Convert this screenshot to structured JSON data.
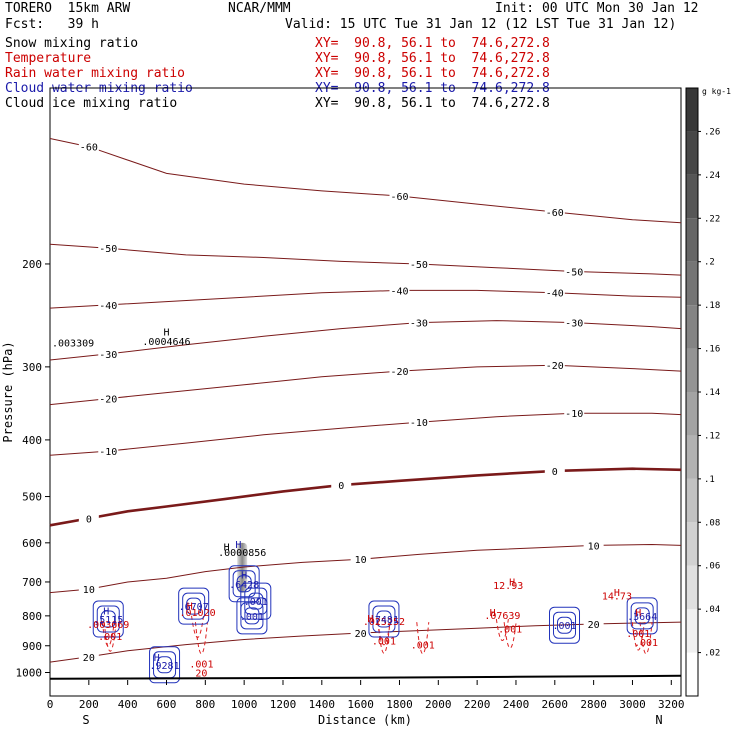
{
  "header": {
    "model": "TORERO  15km ARW",
    "center": "NCAR/MMM",
    "init": "Init: 00 UTC Mon 30 Jan 12",
    "fcst": "Fcst:   39 h",
    "valid": "Valid: 15 UTC Tue 31 Jan 12 (12 LST Tue 31 Jan 12)"
  },
  "fields": [
    {
      "name": "Snow mixing ratio",
      "xy": "XY=  90.8, 56.1 to  74.6,272.8",
      "color": "#000000"
    },
    {
      "name": "Temperature",
      "xy": "XY=  90.8, 56.1 to  74.6,272.8",
      "color": "#cc0000"
    },
    {
      "name": "Rain water mixing ratio",
      "xy": "XY=  90.8, 56.1 to  74.6,272.8",
      "color": "#cc0000"
    },
    {
      "name": "Cloud water mixing ratio",
      "xy": "XY=  90.8, 56.1 to  74.6,272.8",
      "color": "#1a1aaa"
    },
    {
      "name": "Cloud ice mixing ratio",
      "xy": "XY=  90.8, 56.1 to  74.6,272.8",
      "color": "#000000"
    }
  ],
  "chart_data": {
    "type": "contour",
    "xlabel": "Distance (km)",
    "ylabel": "Pressure (hPa)",
    "xlim": [
      0,
      3250
    ],
    "ylim_hpa": [
      100,
      1030
    ],
    "y_log": true,
    "x_ticks": [
      0,
      200,
      400,
      600,
      800,
      1000,
      1200,
      1400,
      1600,
      1800,
      2000,
      2200,
      2400,
      2600,
      2800,
      3000,
      3200
    ],
    "y_ticks": [
      200,
      300,
      400,
      500,
      600,
      700,
      800,
      900,
      1000
    ],
    "end_labels": {
      "left": "S",
      "right": "N"
    },
    "colorbar": {
      "unit": "g kg-1",
      "ticks": [
        ".02",
        ".04",
        ".06",
        ".08",
        ".1",
        ".12",
        ".14",
        ".16",
        ".18",
        ".2",
        ".22",
        ".24",
        ".26"
      ],
      "tick_values": [
        0.02,
        0.04,
        0.06,
        0.08,
        0.1,
        0.12,
        0.14,
        0.16,
        0.18,
        0.2,
        0.22,
        0.24,
        0.26
      ],
      "max": 0.28
    },
    "temperature_isotherms": [
      {
        "level": -60,
        "points": [
          [
            0,
            122
          ],
          [
            200,
            126
          ],
          [
            600,
            140
          ],
          [
            1000,
            146
          ],
          [
            1400,
            150
          ],
          [
            1800,
            153
          ],
          [
            2200,
            158
          ],
          [
            2600,
            163
          ],
          [
            3000,
            168
          ],
          [
            3250,
            170
          ]
        ]
      },
      {
        "level": -50,
        "points": [
          [
            0,
            185
          ],
          [
            300,
            188
          ],
          [
            700,
            193
          ],
          [
            1100,
            195
          ],
          [
            1500,
            198
          ],
          [
            1900,
            200
          ],
          [
            2300,
            203
          ],
          [
            2700,
            206
          ],
          [
            3100,
            208
          ],
          [
            3250,
            209
          ]
        ]
      },
      {
        "level": -40,
        "points": [
          [
            0,
            238
          ],
          [
            300,
            235
          ],
          [
            600,
            232
          ],
          [
            1000,
            228
          ],
          [
            1400,
            224
          ],
          [
            1800,
            222
          ],
          [
            2200,
            222
          ],
          [
            2600,
            224
          ],
          [
            3000,
            227
          ],
          [
            3250,
            228
          ]
        ]
      },
      {
        "level": -30,
        "points": [
          [
            0,
            292
          ],
          [
            300,
            285
          ],
          [
            700,
            275
          ],
          [
            1100,
            266
          ],
          [
            1500,
            258
          ],
          [
            1900,
            252
          ],
          [
            2300,
            250
          ],
          [
            2700,
            252
          ],
          [
            3100,
            256
          ],
          [
            3250,
            258
          ]
        ]
      },
      {
        "level": -20,
        "points": [
          [
            0,
            348
          ],
          [
            300,
            340
          ],
          [
            600,
            332
          ],
          [
            1000,
            322
          ],
          [
            1400,
            312
          ],
          [
            1800,
            305
          ],
          [
            2200,
            300
          ],
          [
            2600,
            298
          ],
          [
            3000,
            302
          ],
          [
            3250,
            305
          ]
        ]
      },
      {
        "level": -10,
        "points": [
          [
            0,
            425
          ],
          [
            300,
            418
          ],
          [
            700,
            405
          ],
          [
            1100,
            392
          ],
          [
            1500,
            382
          ],
          [
            1900,
            373
          ],
          [
            2300,
            365
          ],
          [
            2700,
            360
          ],
          [
            3100,
            360
          ],
          [
            3250,
            362
          ]
        ]
      },
      {
        "level": 0,
        "points": [
          [
            0,
            560
          ],
          [
            200,
            545
          ],
          [
            400,
            530
          ],
          [
            600,
            520
          ],
          [
            900,
            505
          ],
          [
            1200,
            490
          ],
          [
            1500,
            478
          ],
          [
            1800,
            470
          ],
          [
            2200,
            460
          ],
          [
            2600,
            452
          ],
          [
            3000,
            448
          ],
          [
            3250,
            450
          ]
        ]
      },
      {
        "level": 10,
        "points": [
          [
            0,
            730
          ],
          [
            200,
            720
          ],
          [
            400,
            700
          ],
          [
            600,
            690
          ],
          [
            800,
            672
          ],
          [
            1000,
            660
          ],
          [
            1300,
            648
          ],
          [
            1600,
            640
          ],
          [
            1900,
            628
          ],
          [
            2200,
            618
          ],
          [
            2500,
            612
          ],
          [
            2800,
            606
          ],
          [
            3100,
            604
          ],
          [
            3250,
            606
          ]
        ]
      },
      {
        "level": 20,
        "points": [
          [
            0,
            960
          ],
          [
            200,
            940
          ],
          [
            400,
            918
          ],
          [
            700,
            896
          ],
          [
            1000,
            878
          ],
          [
            1300,
            866
          ],
          [
            1600,
            856
          ],
          [
            1900,
            848
          ],
          [
            2200,
            840
          ],
          [
            2500,
            832
          ],
          [
            2800,
            826
          ],
          [
            3100,
            822
          ],
          [
            3250,
            820
          ]
        ]
      }
    ],
    "rain_water_labels": [
      {
        "text": ".003669",
        "x": 300,
        "p": 840
      },
      {
        "text": ".001",
        "x": 310,
        "p": 880
      },
      {
        "text": ".01020",
        "x": 760,
        "p": 800
      },
      {
        "text": ".001",
        "x": 780,
        "p": 980
      },
      {
        "text": ".025252",
        "x": 1720,
        "p": 830
      },
      {
        "text": ".001",
        "x": 1720,
        "p": 895
      },
      {
        "text": ".001",
        "x": 1920,
        "p": 910
      },
      {
        "text": ".07639",
        "x": 2330,
        "p": 810
      },
      {
        "text": ".001",
        "x": 2370,
        "p": 855
      },
      {
        "text": "12.93",
        "x": 2360,
        "p": 720
      },
      {
        "text": "14.73",
        "x": 2920,
        "p": 750
      },
      {
        "text": ".001",
        "x": 3030,
        "p": 870
      },
      {
        "text": ".001",
        "x": 3070,
        "p": 900
      },
      {
        "text": "20",
        "x": 780,
        "p": 1015
      }
    ],
    "cloud_water_labels": [
      {
        "text": ".5115",
        "x": 300,
        "p": 810
      },
      {
        "text": ".6707",
        "x": 740,
        "p": 770
      },
      {
        "text": ".6428",
        "x": 1000,
        "p": 705
      },
      {
        "text": ".001",
        "x": 1040,
        "p": 800
      },
      {
        "text": ".001",
        "x": 1060,
        "p": 755
      },
      {
        "text": ".7481",
        "x": 1720,
        "p": 810
      },
      {
        "text": ".001",
        "x": 2650,
        "p": 830
      },
      {
        "text": ".3664",
        "x": 3050,
        "p": 800
      },
      {
        "text": ".9281",
        "x": 590,
        "p": 970
      }
    ],
    "ice_labels": [
      {
        "text": ".003309",
        "x": 0,
        "p": 277
      },
      {
        "text": ".0004646",
        "x": 600,
        "p": 275
      },
      {
        "text": ".0000856",
        "x": 990,
        "p": 632
      }
    ],
    "max_markers": [
      {
        "x": 600,
        "p": 265,
        "color": "#000000"
      },
      {
        "x": 910,
        "p": 618,
        "color": "#000000"
      },
      {
        "x": 970,
        "p": 612,
        "color": "#1a1aaa"
      },
      {
        "x": 1000,
        "p": 690,
        "color": "#1a1aaa"
      },
      {
        "x": 290,
        "p": 795,
        "color": "#1a1aaa"
      },
      {
        "x": 720,
        "p": 780,
        "color": "#cc0000"
      },
      {
        "x": 2380,
        "p": 710,
        "color": "#cc0000"
      },
      {
        "x": 2920,
        "p": 740,
        "color": "#cc0000"
      },
      {
        "x": 1650,
        "p": 820,
        "color": "#cc0000"
      },
      {
        "x": 2280,
        "p": 800,
        "color": "#cc0000"
      },
      {
        "x": 3030,
        "p": 800,
        "color": "#cc0000"
      },
      {
        "x": 550,
        "p": 955,
        "color": "#1a1aaa"
      }
    ],
    "snow_columns": [
      {
        "x": 990,
        "p_top": 600,
        "p_bottom": 730,
        "value": 0.14
      }
    ],
    "terrain": {
      "points": [
        [
          0,
          1025
        ],
        [
          800,
          1023
        ],
        [
          1600,
          1021
        ],
        [
          2400,
          1017
        ],
        [
          3250,
          1013
        ]
      ]
    }
  }
}
